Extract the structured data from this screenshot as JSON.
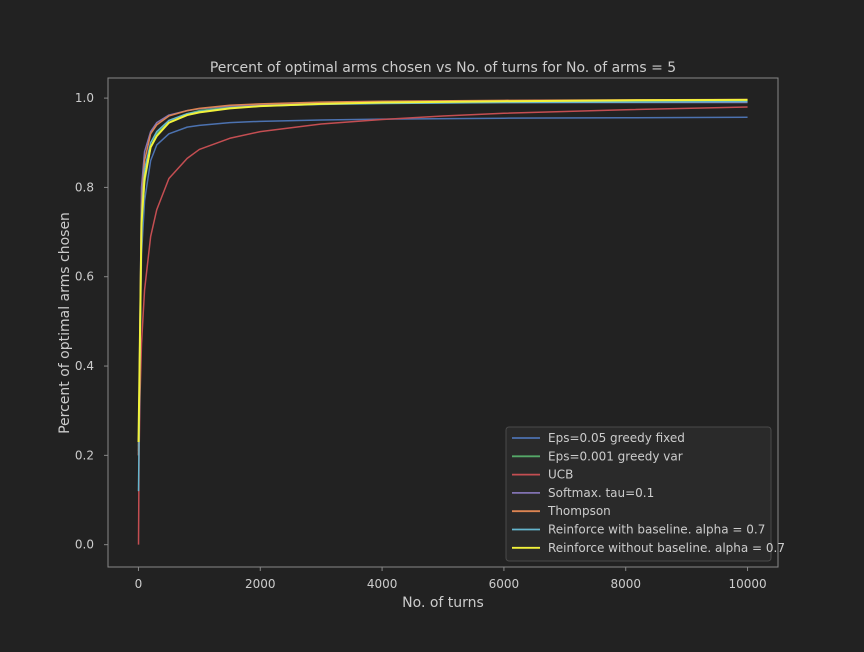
{
  "chart_data": {
    "type": "line",
    "title": "Percent of optimal arms chosen vs No. of turns for No. of arms = 5",
    "xlabel": "No. of turns",
    "ylabel": "Percent of optimal arms chosen",
    "xlim": [
      -500,
      10500
    ],
    "ylim": [
      -0.05,
      1.045
    ],
    "x_ticks": [
      0,
      2000,
      4000,
      6000,
      8000,
      10000
    ],
    "y_ticks": [
      0.0,
      0.2,
      0.4,
      0.6,
      0.8,
      1.0
    ],
    "x_tick_labels": [
      "0",
      "2000",
      "4000",
      "6000",
      "8000",
      "10000"
    ],
    "y_tick_labels": [
      "0.0",
      "0.2",
      "0.4",
      "0.6",
      "0.8",
      "1.0"
    ],
    "grid": false,
    "legend_position": "lower-right",
    "background": "#222222",
    "axes_edge_color": "#888888",
    "text_color": "#cccccc",
    "series": [
      {
        "name": "Eps=0.05 greedy fixed",
        "color": "#4c72b0",
        "x": [
          1,
          50,
          100,
          200,
          300,
          500,
          800,
          1000,
          1500,
          2000,
          3000,
          4000,
          6000,
          8000,
          10000
        ],
        "y": [
          0.22,
          0.65,
          0.77,
          0.86,
          0.895,
          0.92,
          0.935,
          0.939,
          0.945,
          0.948,
          0.951,
          0.953,
          0.955,
          0.956,
          0.957
        ]
      },
      {
        "name": "Eps=0.001 greedy var",
        "color": "#55a868",
        "x": [
          1,
          50,
          100,
          200,
          300,
          500,
          800,
          1000,
          1500,
          2000,
          3000,
          4000,
          6000,
          8000,
          10000
        ],
        "y": [
          0.21,
          0.7,
          0.81,
          0.89,
          0.92,
          0.95,
          0.965,
          0.972,
          0.98,
          0.984,
          0.988,
          0.99,
          0.992,
          0.993,
          0.994
        ]
      },
      {
        "name": "UCB",
        "color": "#c44e52",
        "x": [
          1,
          10,
          25,
          50,
          100,
          200,
          300,
          500,
          800,
          1000,
          1500,
          2000,
          3000,
          4000,
          5000,
          6000,
          8000,
          10000
        ],
        "y": [
          0.0,
          0.2,
          0.33,
          0.45,
          0.57,
          0.69,
          0.75,
          0.82,
          0.865,
          0.885,
          0.91,
          0.925,
          0.942,
          0.952,
          0.96,
          0.966,
          0.974,
          0.98
        ]
      },
      {
        "name": "Softmax. tau=0.1",
        "color": "#8172b2",
        "x": [
          1,
          50,
          100,
          200,
          300,
          500,
          800,
          1000,
          1500,
          2000,
          3000,
          4000,
          6000,
          8000,
          10000
        ],
        "y": [
          0.2,
          0.8,
          0.88,
          0.925,
          0.945,
          0.962,
          0.972,
          0.976,
          0.982,
          0.985,
          0.988,
          0.989,
          0.99,
          0.99,
          0.99
        ]
      },
      {
        "name": "Thompson",
        "color": "#dd8452",
        "x": [
          1,
          50,
          100,
          200,
          300,
          500,
          800,
          1000,
          1500,
          2000,
          3000,
          4000,
          6000,
          8000,
          10000
        ],
        "y": [
          0.2,
          0.76,
          0.86,
          0.92,
          0.94,
          0.96,
          0.972,
          0.977,
          0.984,
          0.987,
          0.991,
          0.993,
          0.995,
          0.996,
          0.997
        ]
      },
      {
        "name": "Reinforce with baseline. alpha = 0.7",
        "color": "#64b5cd",
        "x": [
          1,
          50,
          100,
          200,
          300,
          500,
          800,
          1000,
          1500,
          2000,
          3000,
          4000,
          6000,
          8000,
          10000
        ],
        "y": [
          0.12,
          0.74,
          0.84,
          0.9,
          0.925,
          0.95,
          0.965,
          0.97,
          0.978,
          0.982,
          0.986,
          0.988,
          0.99,
          0.991,
          0.992
        ]
      },
      {
        "name": "Reinforce without baseline. alpha = 0.7",
        "color": "#f2f23a",
        "x": [
          1,
          50,
          100,
          200,
          300,
          500,
          800,
          1000,
          1500,
          2000,
          3000,
          4000,
          6000,
          8000,
          10000
        ],
        "y": [
          0.23,
          0.72,
          0.82,
          0.89,
          0.915,
          0.945,
          0.962,
          0.968,
          0.977,
          0.982,
          0.987,
          0.99,
          0.993,
          0.995,
          0.996
        ]
      }
    ]
  }
}
